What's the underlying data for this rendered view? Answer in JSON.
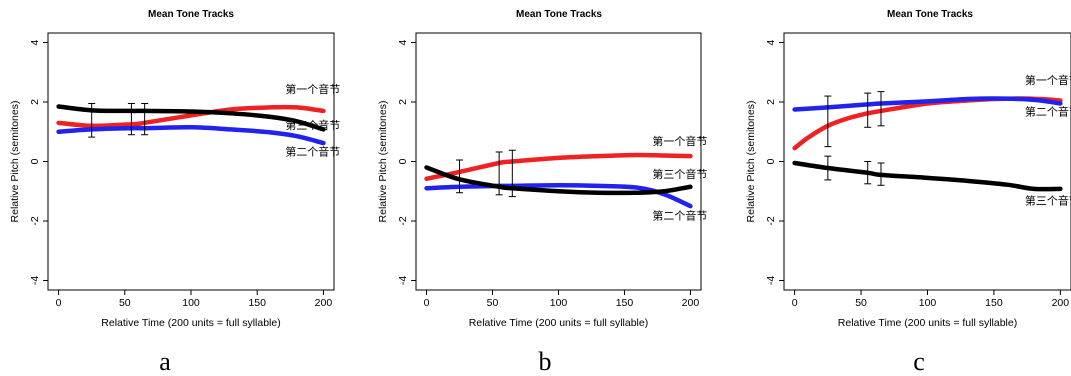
{
  "chart_data": [
    {
      "type": "line",
      "panel_label": "a",
      "title": "Mean Tone Tracks",
      "xlabel": "Relative Time (200 units = full syllable)",
      "ylabel": "Relative Pitch (semitones)",
      "xlim": [
        0,
        200
      ],
      "ylim": [
        -4,
        4
      ],
      "xticks": [
        0,
        50,
        100,
        150,
        200
      ],
      "yticks": [
        -4,
        -2,
        0,
        2,
        4
      ],
      "series": [
        {
          "name": "第一个音节",
          "color": "#ee2222",
          "x": [
            0,
            25,
            55,
            65,
            100,
            130,
            160,
            180,
            200
          ],
          "y": [
            1.3,
            1.2,
            1.25,
            1.3,
            1.55,
            1.75,
            1.82,
            1.82,
            1.7
          ]
        },
        {
          "name": "第二个音节",
          "color": "#2222ee",
          "x": [
            0,
            25,
            55,
            65,
            100,
            130,
            160,
            180,
            200
          ],
          "y": [
            1.0,
            1.08,
            1.12,
            1.12,
            1.15,
            1.08,
            0.98,
            0.85,
            0.62
          ]
        },
        {
          "name": "第三个音节",
          "color": "#000000",
          "x": [
            0,
            25,
            55,
            65,
            100,
            130,
            160,
            180,
            200
          ],
          "y": [
            1.85,
            1.72,
            1.7,
            1.7,
            1.68,
            1.62,
            1.5,
            1.35,
            1.08
          ]
        }
      ],
      "series_label_positions": [
        {
          "text": "第一个音节",
          "x": 192,
          "y": 2.3
        },
        {
          "text": "第三个音节",
          "x": 192,
          "y": 1.1
        },
        {
          "text": "第二个音节",
          "x": 192,
          "y": 0.2
        }
      ],
      "error_bars": [
        {
          "x": 25,
          "low": 0.82,
          "high": 1.95
        },
        {
          "x": 55,
          "low": 0.9,
          "high": 1.95
        },
        {
          "x": 65,
          "low": 0.9,
          "high": 1.95
        }
      ]
    },
    {
      "type": "line",
      "panel_label": "b",
      "title": "Mean Tone Tracks",
      "xlabel": "Relative Time (200 units = full syllable)",
      "ylabel": "Relative Pitch (semitones)",
      "xlim": [
        0,
        200
      ],
      "ylim": [
        -4,
        4
      ],
      "xticks": [
        0,
        50,
        100,
        150,
        200
      ],
      "yticks": [
        -4,
        -2,
        0,
        2,
        4
      ],
      "series": [
        {
          "name": "第一个音节",
          "color": "#ee2222",
          "x": [
            0,
            25,
            55,
            65,
            100,
            130,
            160,
            180,
            200
          ],
          "y": [
            -0.58,
            -0.35,
            -0.05,
            0.0,
            0.12,
            0.18,
            0.22,
            0.2,
            0.18
          ]
        },
        {
          "name": "第二个音节",
          "color": "#2222ee",
          "x": [
            0,
            25,
            55,
            65,
            100,
            130,
            160,
            180,
            200
          ],
          "y": [
            -0.9,
            -0.85,
            -0.82,
            -0.82,
            -0.8,
            -0.82,
            -0.88,
            -1.1,
            -1.5
          ]
        },
        {
          "name": "第三个音节",
          "color": "#000000",
          "x": [
            0,
            25,
            55,
            65,
            100,
            130,
            160,
            180,
            200
          ],
          "y": [
            -0.2,
            -0.6,
            -0.85,
            -0.9,
            -1.0,
            -1.05,
            -1.05,
            -1.0,
            -0.85
          ]
        }
      ],
      "series_label_positions": [
        {
          "text": "第一个音节",
          "x": 192,
          "y": 0.55
        },
        {
          "text": "第三个音节",
          "x": 192,
          "y": -0.55
        },
        {
          "text": "第二个音节",
          "x": 192,
          "y": -1.95
        }
      ],
      "error_bars": [
        {
          "x": 25,
          "low": -1.05,
          "high": 0.05
        },
        {
          "x": 55,
          "low": -1.12,
          "high": 0.32
        },
        {
          "x": 65,
          "low": -1.18,
          "high": 0.38
        }
      ]
    },
    {
      "type": "line",
      "panel_label": "c",
      "title": "Mean Tone Tracks",
      "xlabel": "Relative Time (200 units = full syllable)",
      "ylabel": "Relative Pitch (semitones)",
      "xlim": [
        0,
        200
      ],
      "ylim": [
        -4,
        4
      ],
      "xticks": [
        0,
        50,
        100,
        150,
        200
      ],
      "yticks": [
        -4,
        -2,
        0,
        2,
        4
      ],
      "series": [
        {
          "name": "第一个音节",
          "color": "#ee2222",
          "x": [
            0,
            10,
            25,
            40,
            55,
            65,
            100,
            130,
            150,
            170,
            185,
            200
          ],
          "y": [
            0.45,
            0.8,
            1.2,
            1.45,
            1.62,
            1.7,
            1.95,
            2.05,
            2.1,
            2.12,
            2.1,
            2.05
          ]
        },
        {
          "name": "第二个音节",
          "color": "#2222ee",
          "x": [
            0,
            25,
            55,
            65,
            100,
            130,
            150,
            170,
            185,
            200
          ],
          "y": [
            1.75,
            1.82,
            1.92,
            1.95,
            2.02,
            2.1,
            2.12,
            2.1,
            2.05,
            1.95
          ]
        },
        {
          "name": "第三个音节",
          "color": "#000000",
          "x": [
            0,
            25,
            55,
            65,
            100,
            130,
            160,
            180,
            200
          ],
          "y": [
            -0.05,
            -0.22,
            -0.38,
            -0.45,
            -0.55,
            -0.65,
            -0.78,
            -0.92,
            -0.92
          ]
        }
      ],
      "series_label_positions": [
        {
          "text": "第一个音节",
          "x": 194,
          "y": 2.6
        },
        {
          "text": "第二个音节",
          "x": 194,
          "y": 1.55
        },
        {
          "text": "第三个音节",
          "x": 194,
          "y": -1.45
        }
      ],
      "error_bars": [
        {
          "x": 25,
          "low": 0.5,
          "high": 2.2
        },
        {
          "x": 55,
          "low": 1.15,
          "high": 2.3
        },
        {
          "x": 65,
          "low": 1.2,
          "high": 2.35
        },
        {
          "x": 25,
          "low": -0.62,
          "high": 0.18
        },
        {
          "x": 55,
          "low": -0.75,
          "high": 0.0
        },
        {
          "x": 65,
          "low": -0.8,
          "high": -0.05
        }
      ]
    }
  ]
}
